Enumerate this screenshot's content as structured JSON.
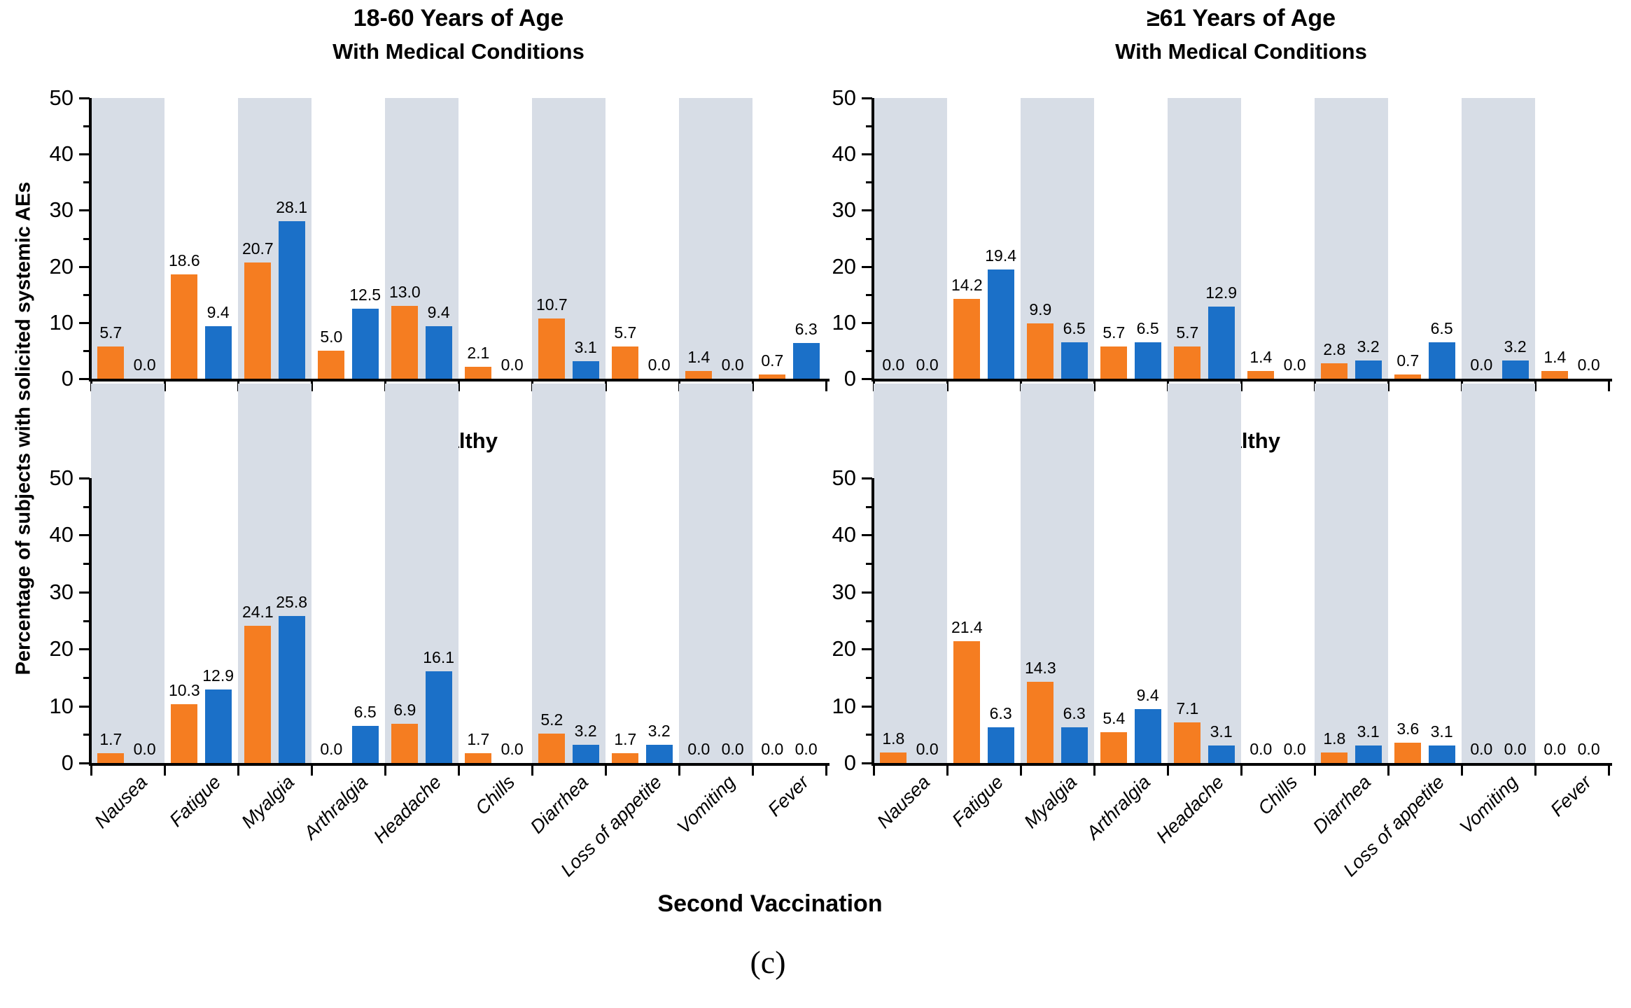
{
  "figure": {
    "y_axis_title": "Percentage of subjects with solicited systemic AEs",
    "x_axis_title": "Second Vaccination",
    "caption": "(c)",
    "colors": {
      "series1": "#F57D21",
      "series2": "#1B70C8",
      "band": "#D7DDE6",
      "axis": "#000000"
    }
  },
  "categories": [
    "Nausea",
    "Fatigue",
    "Myalgia",
    "Arthralgia",
    "Headache",
    "Chills",
    "Diarrhea",
    "Loss of appetite",
    "Vomiting",
    "Fever"
  ],
  "chart_data": [
    {
      "id": "top-left",
      "type": "bar",
      "title": "18-60 Years of Age",
      "subtitle": "With Medical Conditions",
      "categories": [
        "Nausea",
        "Fatigue",
        "Myalgia",
        "Arthralgia",
        "Headache",
        "Chills",
        "Diarrhea",
        "Loss of appetite",
        "Vomiting",
        "Fever"
      ],
      "series": [
        {
          "name": "orange-series",
          "color": "#F57D21",
          "values": [
            5.7,
            18.6,
            20.7,
            5.0,
            13.0,
            2.1,
            10.7,
            5.7,
            1.4,
            0.7
          ]
        },
        {
          "name": "blue-series",
          "color": "#1B70C8",
          "values": [
            0.0,
            9.4,
            28.1,
            12.5,
            9.4,
            0.0,
            3.1,
            0.0,
            0.0,
            6.3
          ]
        }
      ],
      "ylim": [
        0,
        50
      ],
      "yticks": [
        0,
        10,
        20,
        30,
        40,
        50
      ],
      "grid": "alternating-gray-bands",
      "legend": "none"
    },
    {
      "id": "top-right",
      "type": "bar",
      "title": "≥61 Years of Age",
      "subtitle": "With Medical Conditions",
      "categories": [
        "Nausea",
        "Fatigue",
        "Myalgia",
        "Arthralgia",
        "Headache",
        "Chills",
        "Diarrhea",
        "Loss of appetite",
        "Vomiting",
        "Fever"
      ],
      "series": [
        {
          "name": "orange-series",
          "color": "#F57D21",
          "values": [
            0.0,
            14.2,
            9.9,
            5.7,
            5.7,
            1.4,
            2.8,
            0.7,
            0.0,
            1.4
          ]
        },
        {
          "name": "blue-series",
          "color": "#1B70C8",
          "values": [
            0.0,
            19.4,
            6.5,
            6.5,
            12.9,
            0.0,
            3.2,
            6.5,
            3.2,
            0.0
          ]
        }
      ],
      "ylim": [
        0,
        50
      ],
      "yticks": [
        0,
        10,
        20,
        30,
        40,
        50
      ],
      "grid": "alternating-gray-bands",
      "legend": "none"
    },
    {
      "id": "bottom-left",
      "type": "bar",
      "title": "Healthy",
      "categories": [
        "Nausea",
        "Fatigue",
        "Myalgia",
        "Arthralgia",
        "Headache",
        "Chills",
        "Diarrhea",
        "Loss of appetite",
        "Vomiting",
        "Fever"
      ],
      "series": [
        {
          "name": "orange-series",
          "color": "#F57D21",
          "values": [
            1.7,
            10.3,
            24.1,
            0.0,
            6.9,
            1.7,
            5.2,
            1.7,
            0.0,
            0.0
          ]
        },
        {
          "name": "blue-series",
          "color": "#1B70C8",
          "values": [
            0.0,
            12.9,
            25.8,
            6.5,
            16.1,
            0.0,
            3.2,
            3.2,
            0.0,
            0.0
          ]
        }
      ],
      "ylim": [
        0,
        50
      ],
      "yticks": [
        0,
        10,
        20,
        30,
        40,
        50
      ],
      "grid": "alternating-gray-bands",
      "legend": "none"
    },
    {
      "id": "bottom-right",
      "type": "bar",
      "title": "Healthy",
      "categories": [
        "Nausea",
        "Fatigue",
        "Myalgia",
        "Arthralgia",
        "Headache",
        "Chills",
        "Diarrhea",
        "Loss of appetite",
        "Vomiting",
        "Fever"
      ],
      "series": [
        {
          "name": "orange-series",
          "color": "#F57D21",
          "values": [
            1.8,
            21.4,
            14.3,
            5.4,
            7.1,
            0.0,
            1.8,
            3.6,
            0.0,
            0.0
          ]
        },
        {
          "name": "blue-series",
          "color": "#1B70C8",
          "values": [
            0.0,
            6.3,
            6.3,
            9.4,
            3.1,
            0.0,
            3.1,
            3.1,
            0.0,
            0.0
          ]
        }
      ],
      "ylim": [
        0,
        50
      ],
      "yticks": [
        0,
        10,
        20,
        30,
        40,
        50
      ],
      "grid": "alternating-gray-bands",
      "legend": "none"
    }
  ]
}
